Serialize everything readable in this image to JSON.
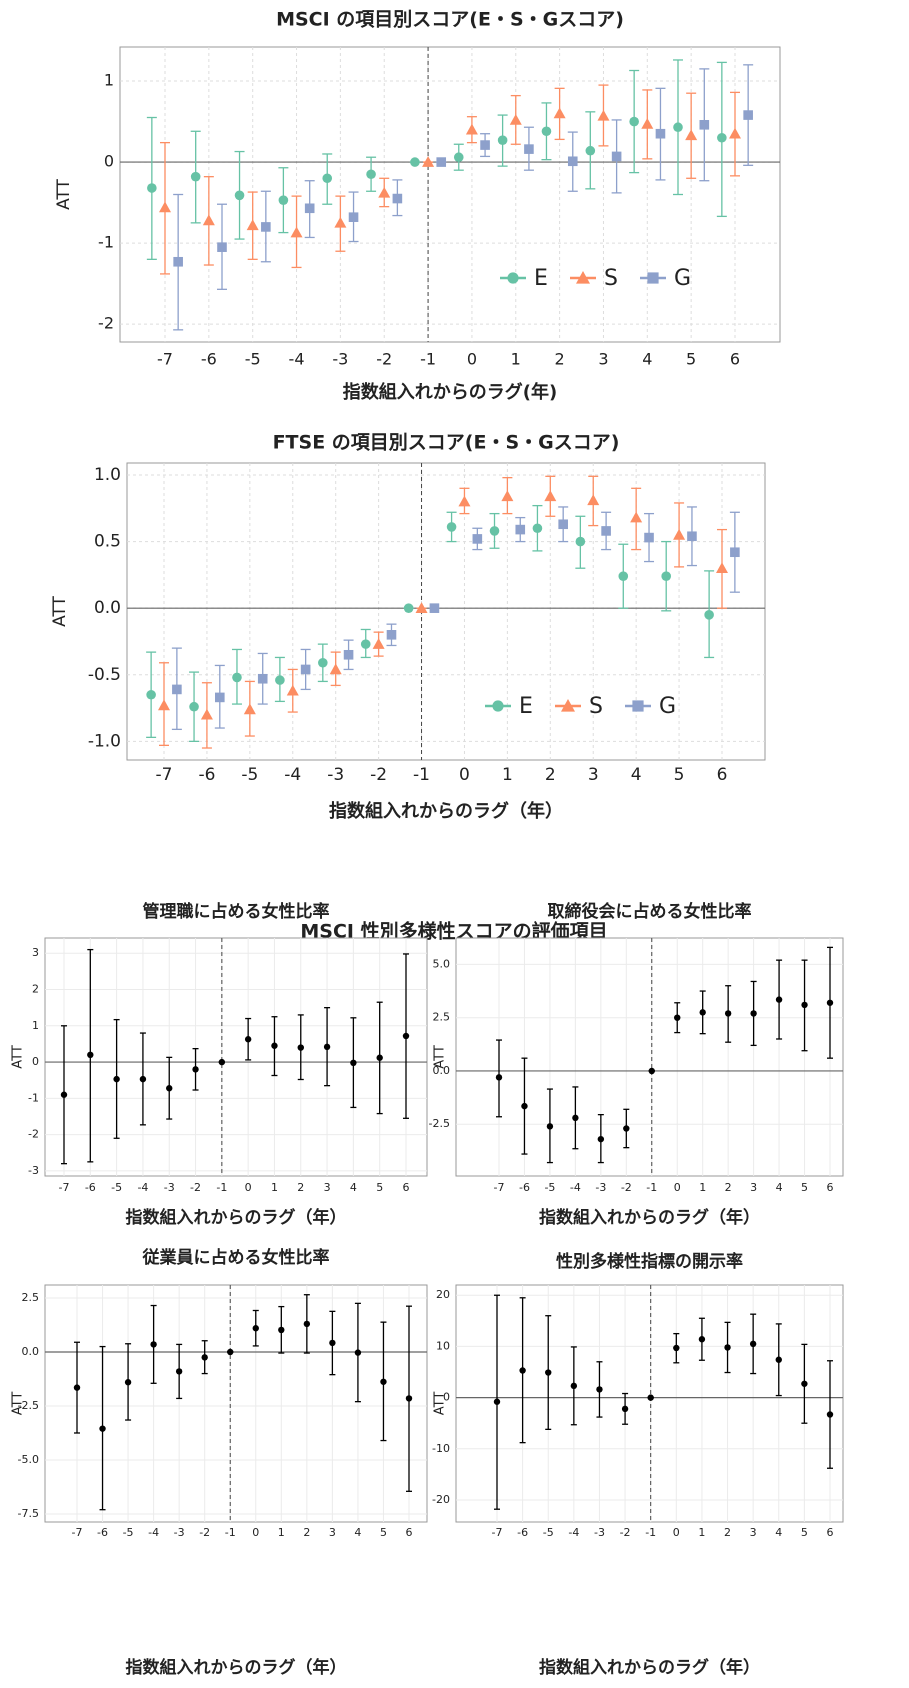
{
  "section_title": "MSCI 性別多様性スコアの評価項目",
  "chart_data": [
    {
      "type": "errorbar",
      "title": "MSCI の項目別スコア(E・S・Gスコア)",
      "xlabel": "指数組入れからのラグ(年)",
      "ylabel": "ATT",
      "categories": [
        "-7",
        "-6",
        "-5",
        "-4",
        "-3",
        "-2",
        "-1",
        "0",
        "1",
        "2",
        "3",
        "4",
        "5",
        "6"
      ],
      "vline": "-1",
      "ylim": [
        -2.22,
        1.42
      ],
      "yticks": [
        -2,
        -1,
        0,
        1
      ],
      "grid": true,
      "legend": "lower right",
      "series": [
        {
          "name": "E",
          "color": "#66c2a5",
          "marker": "circle",
          "values": [
            -0.32,
            -0.18,
            -0.41,
            -0.47,
            -0.2,
            -0.15,
            0,
            0.06,
            0.27,
            0.38,
            0.14,
            0.5,
            0.43,
            0.3
          ],
          "lower": [
            -1.2,
            -0.75,
            -0.95,
            -0.87,
            -0.52,
            -0.36,
            0,
            -0.1,
            -0.05,
            0.03,
            -0.33,
            -0.13,
            -0.4,
            -0.67
          ],
          "upper": [
            0.55,
            0.38,
            0.13,
            -0.07,
            0.1,
            0.06,
            0,
            0.22,
            0.58,
            0.73,
            0.62,
            1.13,
            1.26,
            1.23
          ]
        },
        {
          "name": "S",
          "color": "#fc8d62",
          "marker": "triangle",
          "values": [
            -0.56,
            -0.72,
            -0.78,
            -0.87,
            -0.75,
            -0.38,
            0,
            0.4,
            0.52,
            0.6,
            0.57,
            0.47,
            0.33,
            0.35
          ],
          "lower": [
            -1.38,
            -1.27,
            -1.2,
            -1.3,
            -1.1,
            -0.55,
            0,
            0.24,
            0.22,
            0.28,
            0.2,
            0.04,
            -0.2,
            -0.17
          ],
          "upper": [
            0.24,
            -0.18,
            -0.37,
            -0.42,
            -0.42,
            -0.2,
            0,
            0.56,
            0.82,
            0.91,
            0.95,
            0.89,
            0.85,
            0.86
          ]
        },
        {
          "name": "G",
          "color": "#8da0cb",
          "marker": "square",
          "values": [
            -1.23,
            -1.05,
            -0.8,
            -0.57,
            -0.68,
            -0.45,
            0,
            0.21,
            0.16,
            0.01,
            0.07,
            0.35,
            0.46,
            0.58
          ],
          "lower": [
            -2.07,
            -1.57,
            -1.23,
            -0.93,
            -0.98,
            -0.66,
            0,
            0.07,
            -0.1,
            -0.36,
            -0.38,
            -0.22,
            -0.23,
            -0.04
          ],
          "upper": [
            -0.4,
            -0.52,
            -0.36,
            -0.23,
            -0.37,
            -0.22,
            0,
            0.35,
            0.43,
            0.37,
            0.52,
            0.91,
            1.15,
            1.2
          ]
        }
      ]
    },
    {
      "type": "errorbar",
      "title": "FTSE の項目別スコア(E・S・Gスコア)",
      "xlabel": "指数組入れからのラグ（年）",
      "ylabel": "ATT",
      "categories": [
        "-7",
        "-6",
        "-5",
        "-4",
        "-3",
        "-2",
        "-1",
        "0",
        "1",
        "2",
        "3",
        "4",
        "5",
        "6"
      ],
      "vline": "-1",
      "ylim": [
        -1.14,
        1.09
      ],
      "yticks": [
        {
          "value": -1,
          "label": "-1.0"
        },
        -0.5,
        {
          "value": 0,
          "label": "0.0"
        },
        0.5,
        {
          "value": 1,
          "label": "1.0"
        }
      ],
      "grid": true,
      "legend": "lower right",
      "series": [
        {
          "name": "E",
          "color": "#66c2a5",
          "marker": "circle",
          "values": [
            -0.65,
            -0.74,
            -0.52,
            -0.54,
            -0.41,
            -0.27,
            0,
            0.61,
            0.58,
            0.6,
            0.5,
            0.24,
            0.24,
            -0.05
          ],
          "lower": [
            -0.97,
            -1.0,
            -0.72,
            -0.7,
            -0.55,
            -0.37,
            0,
            0.5,
            0.45,
            0.43,
            0.3,
            0.0,
            -0.02,
            -0.37
          ],
          "upper": [
            -0.33,
            -0.48,
            -0.31,
            -0.37,
            -0.27,
            -0.16,
            0,
            0.72,
            0.71,
            0.77,
            0.69,
            0.48,
            0.5,
            0.28
          ]
        },
        {
          "name": "S",
          "color": "#fc8d62",
          "marker": "triangle",
          "values": [
            -0.73,
            -0.8,
            -0.76,
            -0.62,
            -0.46,
            -0.27,
            0,
            0.8,
            0.84,
            0.84,
            0.81,
            0.68,
            0.55,
            0.3
          ],
          "lower": [
            -1.03,
            -1.05,
            -0.96,
            -0.78,
            -0.58,
            -0.36,
            0,
            0.71,
            0.71,
            0.69,
            0.62,
            0.44,
            0.31,
            0.0
          ],
          "upper": [
            -0.41,
            -0.56,
            -0.55,
            -0.46,
            -0.33,
            -0.18,
            0,
            0.9,
            0.98,
            0.99,
            0.99,
            0.9,
            0.79,
            0.59
          ]
        },
        {
          "name": "G",
          "color": "#8da0cb",
          "marker": "square",
          "values": [
            -0.61,
            -0.67,
            -0.53,
            -0.46,
            -0.35,
            -0.2,
            0,
            0.52,
            0.59,
            0.63,
            0.58,
            0.53,
            0.54,
            0.42
          ],
          "lower": [
            -0.91,
            -0.9,
            -0.72,
            -0.61,
            -0.46,
            -0.28,
            0,
            0.44,
            0.5,
            0.5,
            0.44,
            0.35,
            0.32,
            0.12
          ],
          "upper": [
            -0.3,
            -0.43,
            -0.34,
            -0.31,
            -0.24,
            -0.12,
            0,
            0.6,
            0.68,
            0.76,
            0.72,
            0.71,
            0.76,
            0.72
          ]
        }
      ]
    },
    {
      "type": "errorbar",
      "title": "管理職に占める女性比率",
      "xlabel": "指数組入れからのラグ（年）",
      "ylabel": "ATT",
      "categories": [
        "-7",
        "-6",
        "-5",
        "-4",
        "-3",
        "-2",
        "-1",
        "0",
        "1",
        "2",
        "3",
        "4",
        "5",
        "6"
      ],
      "vline": "-1",
      "ylim": [
        -3.14,
        3.42
      ],
      "yticks": [
        -3,
        -2,
        -1,
        0,
        1,
        2,
        3
      ],
      "grid": true,
      "series": [
        {
          "color": "#000000",
          "marker": "circle",
          "values": [
            -0.9,
            0.2,
            -0.47,
            -0.47,
            -0.72,
            -0.2,
            0,
            0.63,
            0.45,
            0.4,
            0.42,
            -0.02,
            0.12,
            0.72
          ],
          "lower": [
            -2.8,
            -2.75,
            -2.1,
            -1.73,
            -1.57,
            -0.77,
            0,
            0.06,
            -0.37,
            -0.48,
            -0.65,
            -1.25,
            -1.42,
            -1.55
          ],
          "upper": [
            1.0,
            3.1,
            1.17,
            0.8,
            0.13,
            0.37,
            0,
            1.2,
            1.25,
            1.3,
            1.5,
            1.22,
            1.65,
            2.98
          ]
        }
      ]
    },
    {
      "type": "errorbar",
      "title": "取締役会に占める女性比率",
      "xlabel": "指数組入れからのラグ（年）",
      "ylabel": "ATT",
      "categories": [
        "-7",
        "-6",
        "-5",
        "-4",
        "-3",
        "-2",
        "-1",
        "0",
        "1",
        "2",
        "3",
        "4",
        "5",
        "6"
      ],
      "vline": "-1",
      "ylim": [
        -4.93,
        6.24
      ],
      "yticks": [
        -2.5,
        {
          "value": 0,
          "label": "0.0"
        },
        2.5,
        {
          "value": 5,
          "label": "5.0"
        }
      ],
      "grid": true,
      "series": [
        {
          "color": "#000000",
          "marker": "circle",
          "values": [
            -0.3,
            -1.65,
            -2.6,
            -2.2,
            -3.2,
            -2.7,
            0,
            2.5,
            2.75,
            2.7,
            2.7,
            3.35,
            3.1,
            3.2
          ],
          "lower": [
            -2.15,
            -3.9,
            -4.3,
            -3.65,
            -4.3,
            -3.6,
            0,
            1.8,
            1.75,
            1.35,
            1.2,
            1.5,
            0.95,
            0.6
          ],
          "upper": [
            1.45,
            0.6,
            -0.85,
            -0.75,
            -2.05,
            -1.8,
            0,
            3.2,
            3.75,
            4.0,
            4.2,
            5.2,
            5.2,
            5.8
          ]
        }
      ]
    },
    {
      "type": "errorbar",
      "title": "従業員に占める女性比率",
      "xlabel": "指数組入れからのラグ（年）",
      "ylabel": "ATT",
      "categories": [
        "-7",
        "-6",
        "-5",
        "-4",
        "-3",
        "-2",
        "-1",
        "0",
        "1",
        "2",
        "3",
        "4",
        "5",
        "6"
      ],
      "vline": "-1",
      "ylim": [
        -7.87,
        3.1
      ],
      "yticks": [
        -7.5,
        {
          "value": -5,
          "label": "-5.0"
        },
        -2.5,
        {
          "value": 0,
          "label": "0.0"
        },
        2.5
      ],
      "grid": true,
      "series": [
        {
          "color": "#000000",
          "marker": "circle",
          "values": [
            -1.65,
            -3.55,
            -1.4,
            0.35,
            -0.9,
            -0.25,
            0,
            1.1,
            1.02,
            1.3,
            0.42,
            -0.03,
            -1.38,
            -2.15
          ],
          "lower": [
            -3.75,
            -7.3,
            -3.15,
            -1.45,
            -2.15,
            -1.0,
            0,
            0.28,
            -0.05,
            -0.05,
            -1.05,
            -2.3,
            -4.1,
            -6.45
          ],
          "upper": [
            0.45,
            0.25,
            0.38,
            2.15,
            0.35,
            0.52,
            0,
            1.92,
            2.1,
            2.65,
            1.88,
            2.25,
            1.38,
            2.12
          ]
        }
      ]
    },
    {
      "type": "errorbar",
      "title": "性別多様性指標の開示率",
      "xlabel": "指数組入れからのラグ（年）",
      "ylabel": "ATT",
      "categories": [
        "-7",
        "-6",
        "-5",
        "-4",
        "-3",
        "-2",
        "-1",
        "0",
        "1",
        "2",
        "3",
        "4",
        "5",
        "6"
      ],
      "vline": "-1",
      "ylim": [
        -24.3,
        22.0
      ],
      "yticks": [
        -20,
        -10,
        0,
        10,
        20
      ],
      "grid": true,
      "series": [
        {
          "color": "#000000",
          "marker": "circle",
          "values": [
            -0.8,
            5.3,
            4.9,
            2.3,
            1.6,
            -2.2,
            0,
            9.7,
            11.4,
            9.8,
            10.5,
            7.4,
            2.7,
            -3.3
          ],
          "lower": [
            -21.8,
            -8.8,
            -6.2,
            -5.3,
            -3.8,
            -5.2,
            0,
            6.8,
            7.3,
            4.9,
            4.7,
            0.4,
            -5.0,
            -13.8
          ],
          "upper": [
            20.0,
            19.5,
            16.0,
            9.9,
            7.0,
            0.8,
            0,
            12.5,
            15.5,
            14.7,
            16.3,
            14.4,
            10.4,
            7.2
          ]
        }
      ]
    }
  ]
}
